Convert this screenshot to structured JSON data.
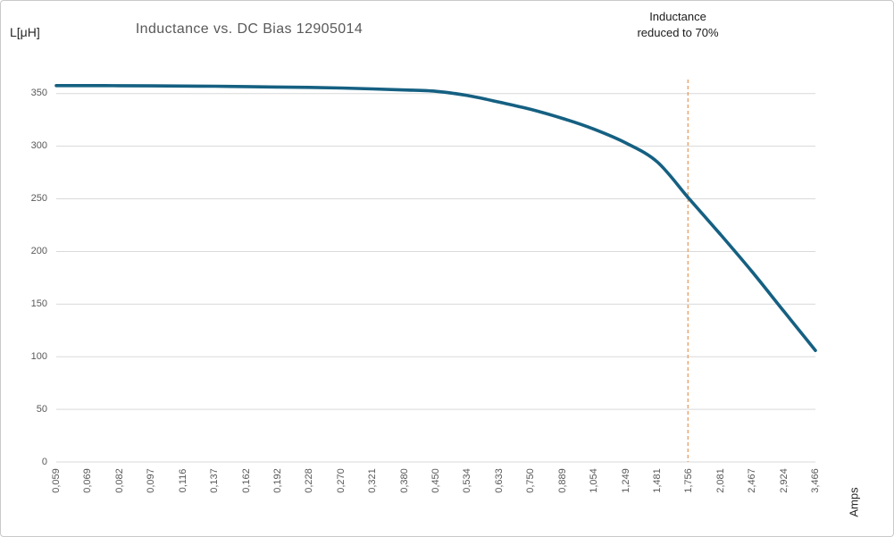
{
  "chart_data": {
    "type": "line",
    "title": "Inductance vs. DC Bias 12905014",
    "y_axis_unit": "L[μH]",
    "x_axis_unit": "Amps",
    "annotation": {
      "line1": "Inductance",
      "line2": "reduced to 70%"
    },
    "categories": [
      "0,059",
      "0,069",
      "0,082",
      "0,097",
      "0,116",
      "0,137",
      "0,162",
      "0,192",
      "0,228",
      "0,270",
      "0,321",
      "0,380",
      "0,450",
      "0,534",
      "0,633",
      "0,750",
      "0,889",
      "1,054",
      "1,249",
      "1,481",
      "1,756",
      "2,081",
      "2,467",
      "2,924",
      "3,466"
    ],
    "series": [
      {
        "name": "Inductance",
        "values": [
          357.6,
          357.6,
          357.5,
          357.4,
          357.2,
          357.0,
          356.7,
          356.3,
          355.9,
          355.3,
          354.5,
          353.5,
          352.2,
          348.2,
          341.9,
          335.0,
          326.5,
          316.2,
          303.2,
          285.1,
          250.4,
          216.1,
          180.7,
          143.2,
          106.0
        ]
      }
    ],
    "y_ticks": [
      0,
      50,
      100,
      150,
      200,
      250,
      300,
      350
    ],
    "ylim": [
      0,
      360
    ],
    "grid": true,
    "legend_position": "none",
    "threshold_marker": {
      "category": "1,756",
      "category_index": 20,
      "value_at_marker": 250,
      "style": "dashed-vertical"
    },
    "colors": {
      "line": "#156082",
      "marker_line": "#e9a36d",
      "gridline": "#d9d9d9",
      "title": "#595959",
      "tick_labels": "#595959",
      "annotation_text": "#1a1a1a",
      "axis_unit_labels": "#262626",
      "background": "#ffffff",
      "border": "#c9c9c9"
    }
  }
}
